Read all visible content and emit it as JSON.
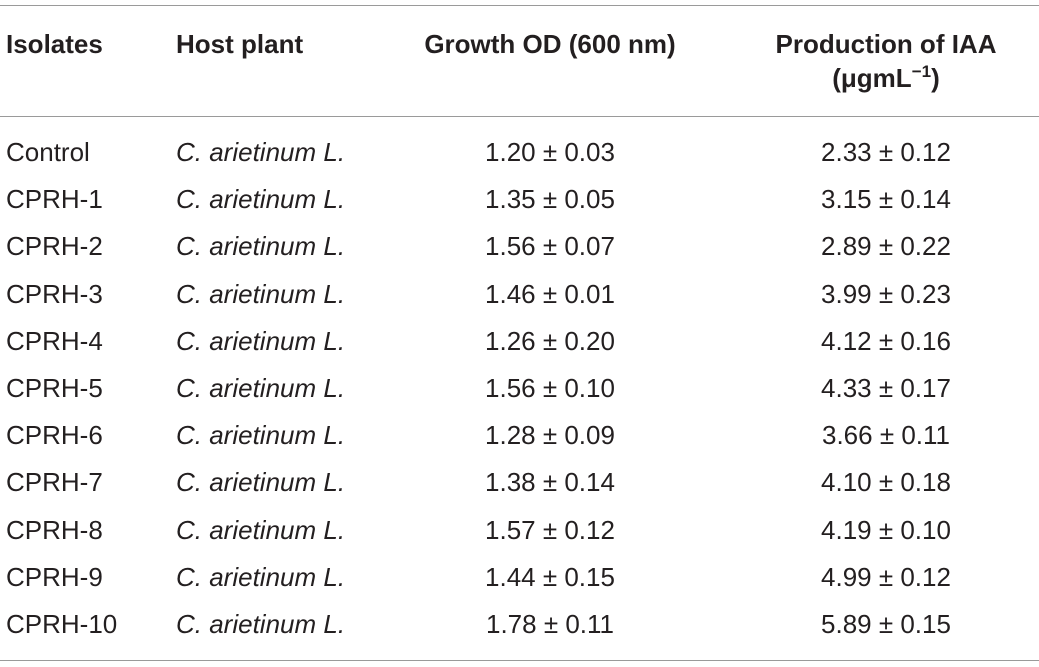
{
  "table": {
    "headers": {
      "isolates": "Isolates",
      "host_plant": "Host plant",
      "growth": "Growth OD (600 nm)",
      "iaa_line1": "Production of IAA",
      "iaa_unit_prefix": "(μgmL",
      "iaa_unit_exp": "−1",
      "iaa_unit_suffix": ")"
    },
    "rows": [
      {
        "isolate": "Control",
        "host": "C. arietinum L.",
        "growth": "1.20 ± 0.03",
        "iaa": "2.33 ± 0.12"
      },
      {
        "isolate": "CPRH-1",
        "host": "C. arietinum L.",
        "growth": "1.35 ± 0.05",
        "iaa": "3.15 ± 0.14"
      },
      {
        "isolate": "CPRH-2",
        "host": "C. arietinum L.",
        "growth": "1.56 ± 0.07",
        "iaa": "2.89 ± 0.22"
      },
      {
        "isolate": "CPRH-3",
        "host": "C. arietinum L.",
        "growth": "1.46 ± 0.01",
        "iaa": "3.99 ± 0.23"
      },
      {
        "isolate": "CPRH-4",
        "host": "C. arietinum L.",
        "growth": "1.26 ± 0.20",
        "iaa": "4.12 ± 0.16"
      },
      {
        "isolate": "CPRH-5",
        "host": "C. arietinum L.",
        "growth": "1.56 ± 0.10",
        "iaa": "4.33 ± 0.17"
      },
      {
        "isolate": "CPRH-6",
        "host": "C. arietinum L.",
        "growth": "1.28 ± 0.09",
        "iaa": "3.66 ± 0.11"
      },
      {
        "isolate": "CPRH-7",
        "host": "C. arietinum L.",
        "growth": "1.38 ± 0.14",
        "iaa": "4.10 ± 0.18"
      },
      {
        "isolate": "CPRH-8",
        "host": "C. arietinum L.",
        "growth": "1.57 ± 0.12",
        "iaa": "4.19 ± 0.10"
      },
      {
        "isolate": "CPRH-9",
        "host": "C. arietinum L.",
        "growth": "1.44 ± 0.15",
        "iaa": "4.99 ± 0.12"
      },
      {
        "isolate": "CPRH-10",
        "host": "C. arietinum L.",
        "growth": "1.78 ± 0.11",
        "iaa": "5.89 ± 0.15"
      }
    ]
  }
}
